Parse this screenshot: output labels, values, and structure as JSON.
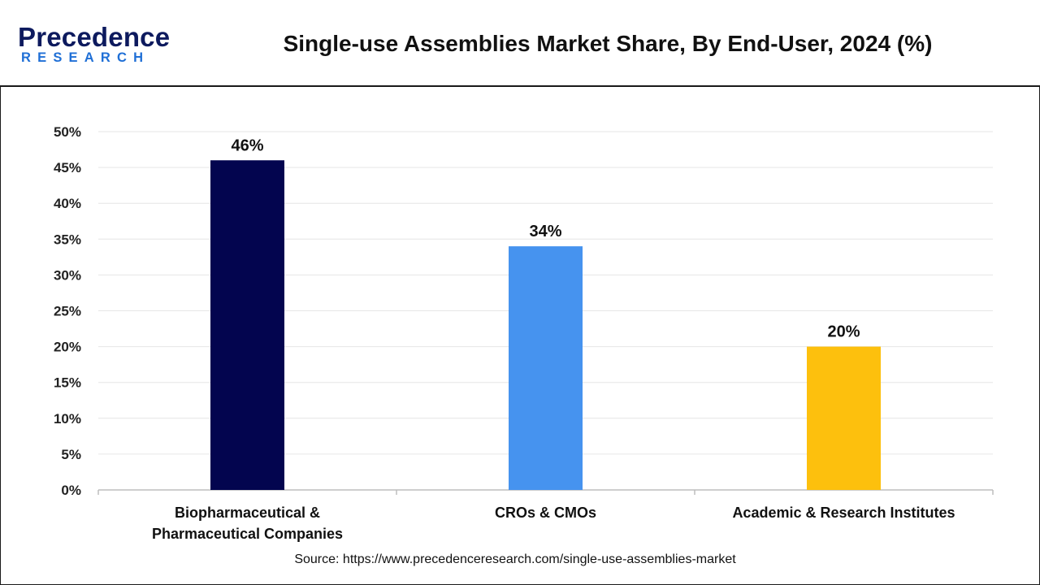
{
  "header": {
    "logo_main": "Precedence",
    "logo_sub": "RESEARCH",
    "title": "Single-use Assemblies Market Share, By End-User, 2024 (%)"
  },
  "chart_data": {
    "type": "bar",
    "title": "Single-use Assemblies Market Share, By End-User, 2024 (%)",
    "categories": [
      [
        "Biopharmaceutical &",
        "Pharmaceutical Companies"
      ],
      [
        "CROs & CMOs"
      ],
      [
        "Academic & Research Institutes"
      ]
    ],
    "values": [
      46,
      34,
      20
    ],
    "value_labels": [
      "46%",
      "34%",
      "20%"
    ],
    "colors": [
      "#03054f",
      "#4693ef",
      "#fdc00d"
    ],
    "ylim": [
      0,
      50
    ],
    "yticks": [
      0,
      5,
      10,
      15,
      20,
      25,
      30,
      35,
      40,
      45,
      50
    ],
    "ytick_labels": [
      "0%",
      "5%",
      "10%",
      "15%",
      "20%",
      "25%",
      "30%",
      "35%",
      "40%",
      "45%",
      "50%"
    ],
    "xlabel": "",
    "ylabel": "",
    "grid": true
  },
  "footer": {
    "source": "Source: https://www.precedenceresearch.com/single-use-assemblies-market"
  }
}
